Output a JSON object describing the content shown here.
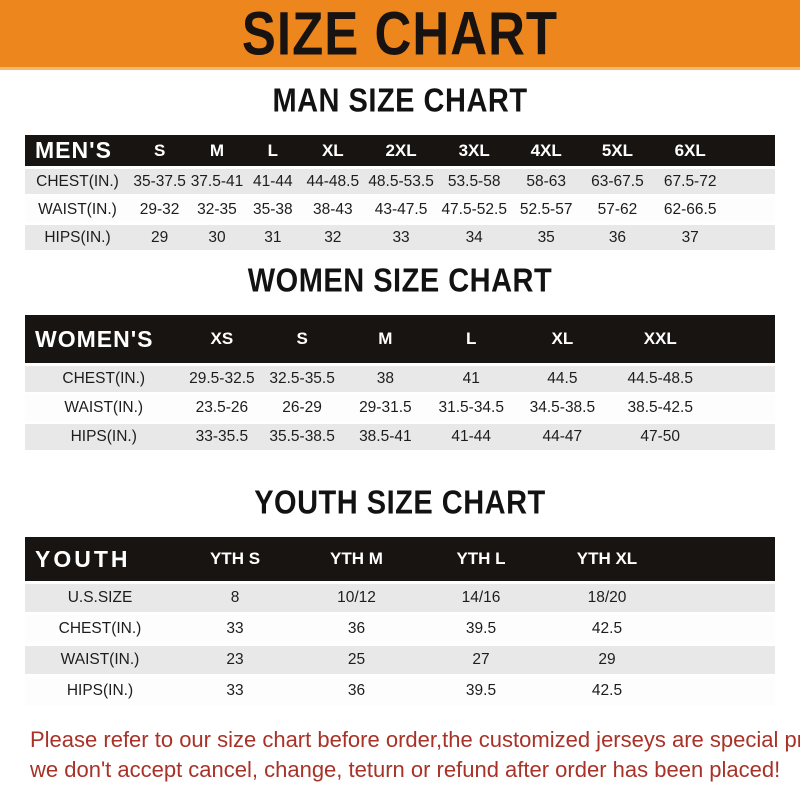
{
  "banner": {
    "title": "SIZE CHART",
    "bg_color": "#EC861D"
  },
  "colors": {
    "banner_orange": "#EC861D",
    "header_band_black": "#171412",
    "row_stripe_gray": "#E8E8E8",
    "note_red": "#A93228"
  },
  "sections": [
    {
      "heading": "MAN SIZE CHART",
      "table": {
        "group_label": "MEN'S",
        "columns": [
          "S",
          "M",
          "L",
          "XL",
          "2XL",
          "3XL",
          "4XL",
          "5XL",
          "6XL"
        ],
        "rows": [
          {
            "label": "CHEST(IN.)",
            "values": [
              "35-37.5",
              "37.5-41",
              "41-44",
              "44-48.5",
              "48.5-53.5",
              "53.5-58",
              "58-63",
              "63-67.5",
              "67.5-72"
            ]
          },
          {
            "label": "WAIST(IN.)",
            "values": [
              "29-32",
              "32-35",
              "35-38",
              "38-43",
              "43-47.5",
              "47.5-52.5",
              "52.5-57",
              "57-62",
              "62-66.5"
            ]
          },
          {
            "label": "HIPS(IN.)",
            "values": [
              "29",
              "30",
              "31",
              "32",
              "33",
              "34",
              "35",
              "36",
              "37"
            ]
          }
        ]
      }
    },
    {
      "heading": "WOMEN SIZE CHART",
      "table": {
        "group_label": "WOMEN'S",
        "columns": [
          "XS",
          "S",
          "M",
          "L",
          "XL",
          "XXL"
        ],
        "rows": [
          {
            "label": "CHEST(IN.)",
            "values": [
              "29.5-32.5",
              "32.5-35.5",
              "38",
              "41",
              "44.5",
              "44.5-48.5"
            ]
          },
          {
            "label": "WAIST(IN.)",
            "values": [
              "23.5-26",
              "26-29",
              "29-31.5",
              "31.5-34.5",
              "34.5-38.5",
              "38.5-42.5"
            ]
          },
          {
            "label": "HIPS(IN.)",
            "values": [
              "33-35.5",
              "35.5-38.5",
              "38.5-41",
              "41-44",
              "44-47",
              "47-50"
            ]
          }
        ]
      }
    },
    {
      "heading": "YOUTH SIZE CHART",
      "table": {
        "group_label": "YOUTH",
        "columns": [
          "YTH S",
          "YTH M",
          "YTH L",
          "YTH XL"
        ],
        "rows": [
          {
            "label": "U.S.SIZE",
            "values": [
              "8",
              "10/12",
              "14/16",
              "18/20"
            ]
          },
          {
            "label": "CHEST(IN.)",
            "values": [
              "33",
              "36",
              "39.5",
              "42.5"
            ]
          },
          {
            "label": "WAIST(IN.)",
            "values": [
              "23",
              "25",
              "27",
              "29"
            ]
          },
          {
            "label": "HIPS(IN.)",
            "values": [
              "33",
              "36",
              "39.5",
              "42.5"
            ]
          }
        ]
      }
    }
  ],
  "footer": {
    "line1": "Please refer to our size chart before order,the customized jerseys are special products,",
    "line2": "we don't accept cancel, change, teturn or refund after order has been placed!",
    "text_color": "#A93228"
  }
}
